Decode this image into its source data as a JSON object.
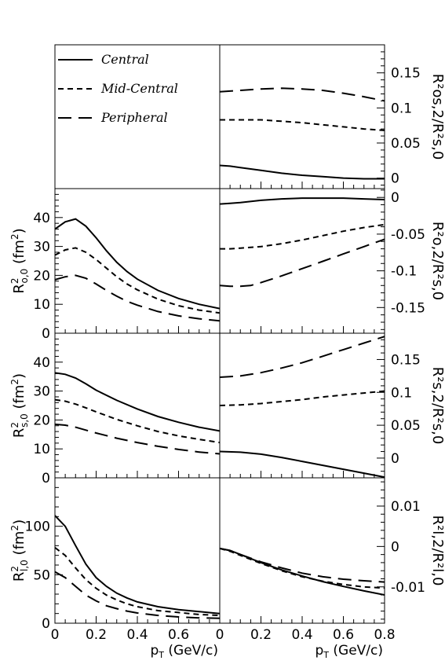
{
  "legend": {
    "items": [
      {
        "label": "Central",
        "style": "solid"
      },
      {
        "label": "Mid-Central",
        "style": "short-dash"
      },
      {
        "label": "Peripheral",
        "style": "long-dash"
      }
    ]
  },
  "x_axis": {
    "label": "p",
    "label_sub": "T",
    "label_rest": " (GeV/c)",
    "range": [
      0,
      0.8
    ]
  },
  "chart_data": [
    {
      "type": "line",
      "panel": "right-row1",
      "ylabel": "R²os,2/R²s,0",
      "ylim": [
        -0.015,
        0.19
      ],
      "yticks": [
        0,
        0.05,
        0.1,
        0.15
      ],
      "ytick_labels": [
        "0",
        "0.05",
        "0.1",
        "0.15"
      ],
      "xlim": [
        0,
        0.8
      ],
      "series": [
        {
          "name": "Central",
          "x": [
            0,
            0.05,
            0.1,
            0.2,
            0.3,
            0.4,
            0.5,
            0.6,
            0.7,
            0.8
          ],
          "y": [
            0.018,
            0.017,
            0.015,
            0.011,
            0.007,
            0.004,
            0.002,
            0.0,
            -0.001,
            -0.001
          ]
        },
        {
          "name": "Mid-Central",
          "x": [
            0,
            0.05,
            0.1,
            0.2,
            0.3,
            0.4,
            0.5,
            0.6,
            0.7,
            0.8
          ],
          "y": [
            0.083,
            0.083,
            0.083,
            0.083,
            0.081,
            0.079,
            0.076,
            0.073,
            0.07,
            0.068
          ]
        },
        {
          "name": "Peripheral",
          "x": [
            0,
            0.05,
            0.1,
            0.2,
            0.3,
            0.4,
            0.5,
            0.6,
            0.7,
            0.8
          ],
          "y": [
            0.123,
            0.124,
            0.125,
            0.127,
            0.128,
            0.127,
            0.125,
            0.121,
            0.116,
            0.11
          ]
        }
      ]
    },
    {
      "type": "line",
      "panel": "left-row2",
      "ylabel_base": "R",
      "ylabel_sup": "2",
      "ylabel_sub": "o,0",
      "ylabel_unit": " (fm",
      "ylabel_unit_sup": "2",
      "ylabel_close": ")",
      "ylim": [
        0,
        50
      ],
      "yticks": [
        0,
        10,
        20,
        30,
        40
      ],
      "ytick_labels": [
        "0",
        "10",
        "20",
        "30",
        "40"
      ],
      "xlim": [
        0,
        0.8
      ],
      "series": [
        {
          "name": "Central",
          "x": [
            0,
            0.05,
            0.1,
            0.15,
            0.2,
            0.25,
            0.3,
            0.35,
            0.4,
            0.5,
            0.6,
            0.7,
            0.8
          ],
          "y": [
            36,
            38.5,
            39.5,
            37,
            33,
            28.5,
            24.5,
            21.3,
            18.7,
            14.8,
            12.0,
            10.0,
            8.5
          ]
        },
        {
          "name": "Mid-Central",
          "x": [
            0,
            0.05,
            0.1,
            0.15,
            0.2,
            0.25,
            0.3,
            0.35,
            0.4,
            0.5,
            0.6,
            0.7,
            0.8
          ],
          "y": [
            27,
            28.8,
            29.5,
            28.0,
            25.5,
            22.5,
            19.5,
            17.0,
            15.0,
            11.8,
            9.5,
            8.0,
            7.0
          ]
        },
        {
          "name": "Peripheral",
          "x": [
            0,
            0.05,
            0.1,
            0.15,
            0.2,
            0.25,
            0.3,
            0.35,
            0.4,
            0.5,
            0.6,
            0.7,
            0.8
          ],
          "y": [
            18.5,
            19.5,
            20.0,
            19.0,
            17.0,
            14.8,
            12.8,
            11.0,
            9.7,
            7.5,
            6.0,
            5.0,
            4.3
          ]
        }
      ]
    },
    {
      "type": "line",
      "panel": "right-row2",
      "ylabel": "R²o,2/R²s,0",
      "ylim": [
        -0.185,
        0.012
      ],
      "yticks": [
        -0.15,
        -0.1,
        -0.05,
        0
      ],
      "ytick_labels": [
        "-0.15",
        "-0.1",
        "-0.05",
        "0"
      ],
      "xlim": [
        0,
        0.8
      ],
      "series": [
        {
          "name": "Central",
          "x": [
            0,
            0.05,
            0.1,
            0.2,
            0.3,
            0.4,
            0.5,
            0.6,
            0.7,
            0.8
          ],
          "y": [
            -0.009,
            -0.008,
            -0.007,
            -0.004,
            -0.002,
            -0.001,
            -0.001,
            -0.001,
            -0.002,
            -0.003
          ]
        },
        {
          "name": "Mid-Central",
          "x": [
            0,
            0.05,
            0.1,
            0.2,
            0.3,
            0.4,
            0.5,
            0.6,
            0.7,
            0.8
          ],
          "y": [
            -0.07,
            -0.07,
            -0.069,
            -0.067,
            -0.063,
            -0.058,
            -0.052,
            -0.046,
            -0.041,
            -0.037
          ]
        },
        {
          "name": "Peripheral",
          "x": [
            0,
            0.05,
            0.1,
            0.15,
            0.2,
            0.3,
            0.4,
            0.5,
            0.6,
            0.7,
            0.8
          ],
          "y": [
            -0.12,
            -0.121,
            -0.121,
            -0.12,
            -0.116,
            -0.107,
            -0.097,
            -0.087,
            -0.077,
            -0.067,
            -0.057
          ]
        }
      ]
    },
    {
      "type": "line",
      "panel": "left-row3",
      "ylabel_base": "R",
      "ylabel_sup": "2",
      "ylabel_sub": "s,0",
      "ylabel_unit": " (fm",
      "ylabel_unit_sup": "2",
      "ylabel_close": ")",
      "ylim": [
        0,
        50
      ],
      "yticks": [
        0,
        10,
        20,
        30,
        40
      ],
      "ytick_labels": [
        "0",
        "10",
        "20",
        "30",
        "40"
      ],
      "xlim": [
        0,
        0.8
      ],
      "series": [
        {
          "name": "Central",
          "x": [
            0,
            0.05,
            0.1,
            0.15,
            0.2,
            0.3,
            0.4,
            0.5,
            0.6,
            0.7,
            0.8
          ],
          "y": [
            36.3,
            35.8,
            34.5,
            32.5,
            30.3,
            26.8,
            23.8,
            21.2,
            19.2,
            17.5,
            16.2
          ]
        },
        {
          "name": "Mid-Central",
          "x": [
            0,
            0.05,
            0.1,
            0.15,
            0.2,
            0.3,
            0.4,
            0.5,
            0.6,
            0.7,
            0.8
          ],
          "y": [
            27.0,
            26.5,
            25.5,
            24.2,
            22.8,
            20.2,
            18.0,
            16.0,
            14.5,
            13.3,
            12.2
          ]
        },
        {
          "name": "Peripheral",
          "x": [
            0,
            0.05,
            0.1,
            0.15,
            0.2,
            0.3,
            0.4,
            0.5,
            0.6,
            0.7,
            0.8
          ],
          "y": [
            18.5,
            18.2,
            17.5,
            16.5,
            15.5,
            13.7,
            12.2,
            10.9,
            9.8,
            8.9,
            8.3
          ]
        }
      ]
    },
    {
      "type": "line",
      "panel": "right-row3",
      "ylabel": "R²s,2/R²s,0",
      "ylim": [
        -0.03,
        0.19
      ],
      "yticks": [
        0,
        0.05,
        0.1,
        0.15
      ],
      "ytick_labels": [
        "0",
        "0.05",
        "0.1",
        "0.15"
      ],
      "xlim": [
        0,
        0.8
      ],
      "series": [
        {
          "name": "Central",
          "x": [
            0,
            0.1,
            0.2,
            0.3,
            0.4,
            0.5,
            0.6,
            0.7,
            0.8
          ],
          "y": [
            0.01,
            0.009,
            0.006,
            0.001,
            -0.005,
            -0.011,
            -0.017,
            -0.023,
            -0.029
          ]
        },
        {
          "name": "Mid-Central",
          "x": [
            0,
            0.1,
            0.2,
            0.3,
            0.4,
            0.5,
            0.6,
            0.7,
            0.8
          ],
          "y": [
            0.08,
            0.081,
            0.083,
            0.086,
            0.089,
            0.093,
            0.096,
            0.099,
            0.102
          ]
        },
        {
          "name": "Peripheral",
          "x": [
            0,
            0.1,
            0.2,
            0.3,
            0.4,
            0.5,
            0.6,
            0.7,
            0.8
          ],
          "y": [
            0.123,
            0.125,
            0.13,
            0.137,
            0.145,
            0.155,
            0.165,
            0.175,
            0.185
          ]
        }
      ]
    },
    {
      "type": "line",
      "panel": "left-row4",
      "ylabel_base": "R",
      "ylabel_sup": "2",
      "ylabel_sub": "l,0",
      "ylabel_unit": " (fm",
      "ylabel_unit_sup": "2",
      "ylabel_close": ")",
      "ylim": [
        0,
        150
      ],
      "yticks": [
        0,
        50,
        100
      ],
      "ytick_labels": [
        "0",
        "50",
        "100"
      ],
      "xlim": [
        0,
        0.8
      ],
      "series": [
        {
          "name": "Central",
          "x": [
            0,
            0.05,
            0.1,
            0.15,
            0.2,
            0.25,
            0.3,
            0.35,
            0.4,
            0.5,
            0.6,
            0.7,
            0.8
          ],
          "y": [
            111,
            100,
            80,
            61,
            47,
            38,
            31,
            26,
            22,
            17,
            14,
            12,
            10
          ]
        },
        {
          "name": "Mid-Central",
          "x": [
            0,
            0.05,
            0.1,
            0.15,
            0.2,
            0.25,
            0.3,
            0.35,
            0.4,
            0.5,
            0.6,
            0.7,
            0.8
          ],
          "y": [
            78,
            70,
            57,
            45,
            36,
            29,
            24,
            20,
            17,
            13,
            11,
            9,
            8
          ]
        },
        {
          "name": "Peripheral",
          "x": [
            0,
            0.05,
            0.1,
            0.15,
            0.2,
            0.25,
            0.3,
            0.35,
            0.4,
            0.5,
            0.6,
            0.7,
            0.8
          ],
          "y": [
            53,
            47,
            38,
            29,
            23,
            18,
            15,
            12.5,
            10.5,
            8,
            6.5,
            5.5,
            5
          ]
        }
      ]
    },
    {
      "type": "line",
      "panel": "right-row4",
      "ylabel": "R²l,2/R²l,0",
      "ylim": [
        -0.019,
        0.017
      ],
      "yticks": [
        -0.01,
        0,
        0.01
      ],
      "ytick_labels": [
        "-0.01",
        "0",
        "0.01"
      ],
      "xlim": [
        0,
        0.8
      ],
      "series": [
        {
          "name": "Central",
          "x": [
            0,
            0.05,
            0.1,
            0.2,
            0.3,
            0.4,
            0.5,
            0.6,
            0.7,
            0.8
          ],
          "y": [
            -0.0005,
            -0.001,
            -0.002,
            -0.004,
            -0.0058,
            -0.0073,
            -0.0087,
            -0.0099,
            -0.011,
            -0.012
          ]
        },
        {
          "name": "Mid-Central",
          "x": [
            0,
            0.05,
            0.1,
            0.2,
            0.3,
            0.4,
            0.5,
            0.6,
            0.7,
            0.8
          ],
          "y": [
            -0.0005,
            -0.0012,
            -0.0022,
            -0.0042,
            -0.006,
            -0.0075,
            -0.0086,
            -0.0094,
            -0.01,
            -0.0103
          ]
        },
        {
          "name": "Peripheral",
          "x": [
            0,
            0.05,
            0.1,
            0.2,
            0.3,
            0.4,
            0.5,
            0.6,
            0.7,
            0.8
          ],
          "y": [
            -0.0005,
            -0.001,
            -0.002,
            -0.0038,
            -0.0053,
            -0.0066,
            -0.0075,
            -0.0081,
            -0.0085,
            -0.0088
          ]
        }
      ]
    }
  ],
  "bottom_x_ticks": {
    "left": [
      "0",
      "0.2",
      "0.4",
      "0.6",
      ""
    ],
    "right": [
      "0",
      "0.2",
      "0.4",
      "0.6",
      "0.8"
    ]
  }
}
